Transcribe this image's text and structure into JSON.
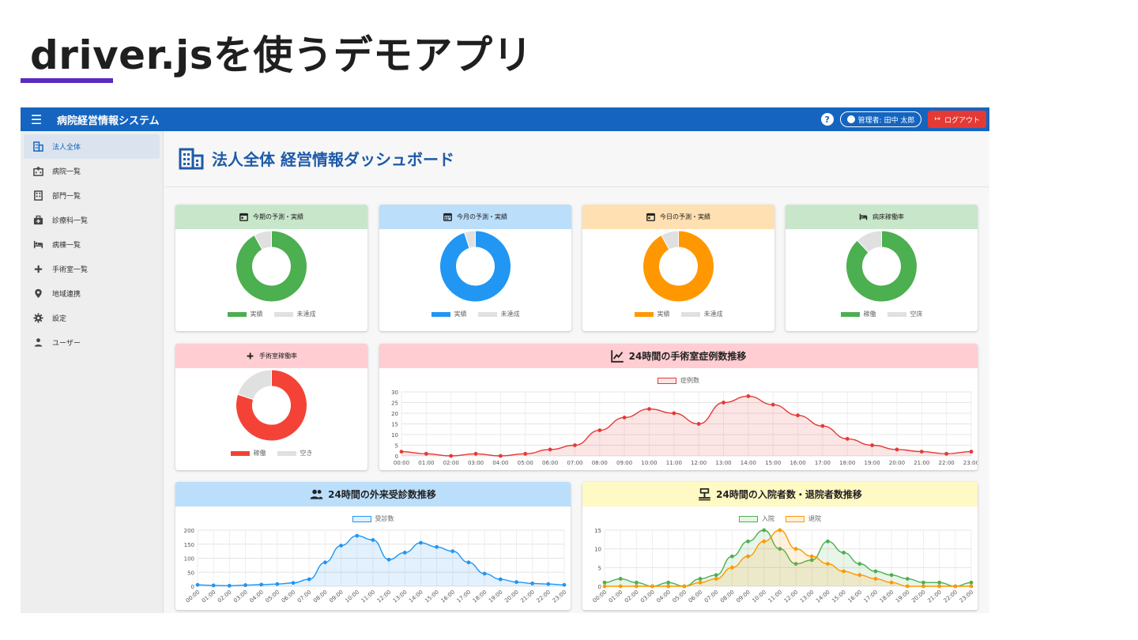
{
  "slide": {
    "title": "driver.jsを使うデモアプリ"
  },
  "app": {
    "title": "病院経営情報システム",
    "help_icon": "help-icon",
    "user_label": "管理者: 田中 太郎",
    "logout_label": "ログアウト",
    "colors": {
      "topbar": "#1565c0",
      "logout": "#e53935",
      "accent": "#1e5aa8"
    }
  },
  "sidebar": {
    "items": [
      {
        "label": "法人全体",
        "icon": "building-icon",
        "active": true
      },
      {
        "label": "病院一覧",
        "icon": "hospital-icon"
      },
      {
        "label": "部門一覧",
        "icon": "office-building-icon"
      },
      {
        "label": "診療科一覧",
        "icon": "medical-bag-icon"
      },
      {
        "label": "病棟一覧",
        "icon": "bed-icon"
      },
      {
        "label": "手術室一覧",
        "icon": "plus-icon"
      },
      {
        "label": "地域連携",
        "icon": "location-icon"
      },
      {
        "label": "設定",
        "icon": "gear-icon"
      },
      {
        "label": "ユーザー",
        "icon": "person-icon"
      }
    ]
  },
  "page": {
    "title": "法人全体 経営情報ダッシュボード"
  },
  "donuts": [
    {
      "title": "今期の予測・実績",
      "icon": "calendar-icon",
      "header_color": "#c8e6c9",
      "color": "#4caf50",
      "labels": [
        "実績",
        "未達成"
      ],
      "values": [
        92,
        8
      ]
    },
    {
      "title": "今月の予測・実績",
      "icon": "calendar-month-icon",
      "header_color": "#bbdefb",
      "color": "#2196f3",
      "labels": [
        "実績",
        "未達成"
      ],
      "values": [
        95,
        5
      ]
    },
    {
      "title": "今日の予測・実績",
      "icon": "calendar-today-icon",
      "header_color": "#ffe0b2",
      "color": "#ff9800",
      "labels": [
        "実績",
        "未達成"
      ],
      "values": [
        92,
        8
      ]
    },
    {
      "title": "病床稼働率",
      "icon": "bed-icon",
      "header_color": "#c8e6c9",
      "color": "#4caf50",
      "labels": [
        "稼働",
        "空床"
      ],
      "values": [
        88,
        12
      ]
    },
    {
      "title": "手術室稼働率",
      "icon": "plus-icon",
      "header_color": "#ffcdd2",
      "color": "#f44336",
      "labels": [
        "稼働",
        "空き"
      ],
      "values": [
        80,
        20
      ]
    }
  ],
  "chart_data": [
    {
      "type": "area",
      "title": "24時間の手術室症例数推移",
      "icon": "chart-line-icon",
      "header_color": "#ffcdd2",
      "categories": [
        "00:00",
        "01:00",
        "02:00",
        "03:00",
        "04:00",
        "05:00",
        "06:00",
        "07:00",
        "08:00",
        "09:00",
        "10:00",
        "11:00",
        "12:00",
        "13:00",
        "14:00",
        "15:00",
        "16:00",
        "17:00",
        "18:00",
        "19:00",
        "20:00",
        "21:00",
        "22:00",
        "23:00"
      ],
      "series": [
        {
          "name": "症例数",
          "color": "#e53935",
          "values": [
            2,
            1,
            0,
            1,
            0,
            1,
            3,
            5,
            12,
            18,
            22,
            20,
            15,
            25,
            28,
            24,
            19,
            14,
            8,
            5,
            3,
            2,
            1,
            2
          ]
        }
      ],
      "ylim": [
        0,
        30
      ],
      "yticks": [
        0,
        5,
        10,
        15,
        20,
        25,
        30
      ],
      "legend": "top"
    },
    {
      "type": "area",
      "title": "24時間の外来受診数推移",
      "icon": "people-icon",
      "header_color": "#bbdefb",
      "categories": [
        "00:00",
        "01:00",
        "02:00",
        "03:00",
        "04:00",
        "05:00",
        "06:00",
        "07:00",
        "08:00",
        "09:00",
        "10:00",
        "11:00",
        "12:00",
        "13:00",
        "14:00",
        "15:00",
        "16:00",
        "17:00",
        "18:00",
        "19:00",
        "20:00",
        "21:00",
        "22:00",
        "23:00"
      ],
      "series": [
        {
          "name": "受診数",
          "color": "#2196f3",
          "values": [
            5,
            3,
            2,
            4,
            6,
            8,
            12,
            25,
            85,
            145,
            180,
            165,
            95,
            120,
            155,
            140,
            125,
            85,
            45,
            25,
            15,
            10,
            8,
            5
          ]
        }
      ],
      "ylim": [
        0,
        200
      ],
      "yticks": [
        0,
        50,
        100,
        150,
        200
      ],
      "legend": "top"
    },
    {
      "type": "area",
      "title": "24時間の入院者数・退院者数推移",
      "icon": "scale-icon",
      "header_color": "#fff9c4",
      "categories": [
        "00:00",
        "01:00",
        "02:00",
        "03:00",
        "04:00",
        "05:00",
        "06:00",
        "07:00",
        "08:00",
        "09:00",
        "10:00",
        "11:00",
        "12:00",
        "13:00",
        "14:00",
        "15:00",
        "16:00",
        "17:00",
        "18:00",
        "19:00",
        "20:00",
        "21:00",
        "22:00",
        "23:00"
      ],
      "series": [
        {
          "name": "入院",
          "color": "#4caf50",
          "values": [
            1,
            2,
            1,
            0,
            1,
            0,
            2,
            3,
            8,
            12,
            15,
            10,
            6,
            7,
            12,
            9,
            6,
            4,
            3,
            2,
            1,
            1,
            0,
            1
          ]
        },
        {
          "name": "退院",
          "color": "#ff9800",
          "values": [
            0,
            0,
            0,
            0,
            0,
            0,
            1,
            2,
            5,
            8,
            12,
            15,
            10,
            8,
            6,
            4,
            3,
            2,
            1,
            0,
            0,
            0,
            0,
            0
          ]
        }
      ],
      "ylim": [
        0,
        15
      ],
      "yticks": [
        0,
        5,
        10,
        15
      ],
      "legend": "top"
    }
  ]
}
